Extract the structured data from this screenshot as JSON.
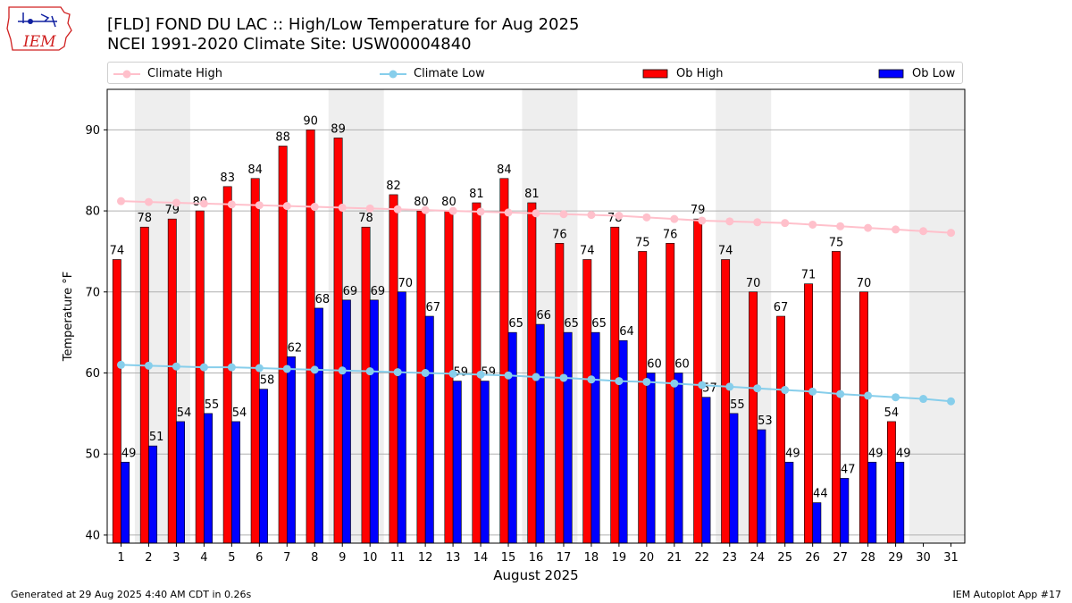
{
  "header": {
    "title_line1": "[FLD] FOND DU LAC :: High/Low Temperature for Aug 2025",
    "title_line2": "NCEI 1991-2020 Climate Site: USW00004840",
    "logo_text": "IEM"
  },
  "legend": {
    "climate_high": "Climate High",
    "climate_low": "Climate Low",
    "ob_high": "Ob High",
    "ob_low": "Ob Low"
  },
  "colors": {
    "ob_high": "#ff0000",
    "ob_low": "#0000ff",
    "climate_high": "#ffc0cb",
    "climate_low": "#87ceeb",
    "weekend_band": "#eeeeee",
    "grid": "#b0b0b0"
  },
  "footer": {
    "generated": "Generated at 29 Aug 2025 4:40 AM CDT in 0.26s",
    "app": "IEM Autoplot App #17"
  },
  "chart_data": {
    "type": "bar",
    "title": "[FLD] FOND DU LAC :: High/Low Temperature for Aug 2025",
    "subtitle": "NCEI 1991-2020 Climate Site: USW00004840",
    "xlabel": "August 2025",
    "ylabel": "Temperature °F",
    "xlim": [
      0.5,
      31.5
    ],
    "ylim": [
      39,
      95
    ],
    "yticks": [
      40,
      50,
      60,
      70,
      80,
      90
    ],
    "categories": [
      1,
      2,
      3,
      4,
      5,
      6,
      7,
      8,
      9,
      10,
      11,
      12,
      13,
      14,
      15,
      16,
      17,
      18,
      19,
      20,
      21,
      22,
      23,
      24,
      25,
      26,
      27,
      28,
      29,
      30,
      31
    ],
    "grid": true,
    "legend_position": "top",
    "weekend_bands": [
      [
        1.5,
        3.5
      ],
      [
        8.5,
        10.5
      ],
      [
        15.5,
        17.5
      ],
      [
        22.5,
        24.5
      ],
      [
        29.5,
        31.5
      ]
    ],
    "series": [
      {
        "name": "Ob High",
        "kind": "bar",
        "values": [
          74,
          78,
          79,
          80,
          83,
          84,
          88,
          90,
          89,
          78,
          82,
          80,
          80,
          81,
          84,
          81,
          76,
          74,
          78,
          75,
          76,
          79,
          74,
          70,
          67,
          71,
          75,
          70,
          54,
          null,
          null
        ]
      },
      {
        "name": "Ob Low",
        "kind": "bar",
        "values": [
          49,
          51,
          54,
          55,
          54,
          58,
          62,
          68,
          69,
          69,
          70,
          67,
          59,
          59,
          65,
          66,
          65,
          65,
          64,
          60,
          60,
          57,
          55,
          53,
          49,
          44,
          47,
          49,
          49,
          null,
          null
        ]
      },
      {
        "name": "Climate High",
        "kind": "line",
        "values": [
          81.2,
          81.1,
          81.0,
          80.9,
          80.8,
          80.7,
          80.6,
          80.5,
          80.4,
          80.3,
          80.2,
          80.1,
          80.0,
          79.9,
          79.8,
          79.7,
          79.6,
          79.5,
          79.4,
          79.2,
          79.0,
          78.8,
          78.7,
          78.6,
          78.5,
          78.3,
          78.1,
          77.9,
          77.7,
          77.5,
          77.3
        ]
      },
      {
        "name": "Climate Low",
        "kind": "line",
        "values": [
          61.0,
          60.9,
          60.8,
          60.7,
          60.7,
          60.6,
          60.5,
          60.4,
          60.3,
          60.2,
          60.1,
          60.0,
          59.9,
          59.8,
          59.7,
          59.5,
          59.4,
          59.2,
          59.0,
          58.9,
          58.7,
          58.5,
          58.3,
          58.1,
          57.9,
          57.7,
          57.4,
          57.2,
          57.0,
          56.8,
          56.5
        ]
      }
    ]
  }
}
